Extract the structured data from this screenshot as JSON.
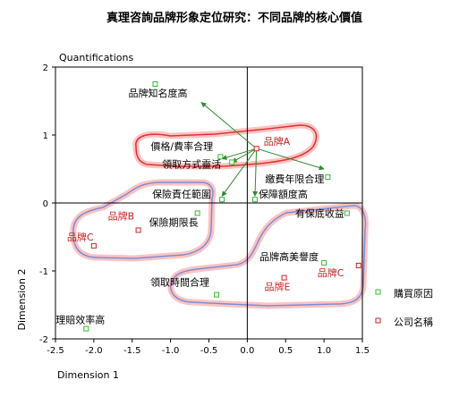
{
  "chart_data": {
    "type": "scatter",
    "title": "真理咨詢品牌形象定位研究：不同品牌的核心價值",
    "plot_caption": "Quantifications",
    "xlabel": "Dimension 1",
    "ylabel": "Dimension 2",
    "xlim": [
      -2.5,
      1.5
    ],
    "ylim": [
      -2,
      2
    ],
    "xticks": [
      "-2.5",
      "-2.0",
      "-1.5",
      "-1.0",
      "-0.5",
      "0.0",
      "0.5",
      "1.0",
      "1.5"
    ],
    "yticks": [
      "2",
      "1",
      "0",
      "-1",
      "-2"
    ],
    "legend_placement": "right",
    "series": [
      {
        "name": "購買原因",
        "color": "#33bb33",
        "points": [
          {
            "label": "品牌知名度高",
            "x": -1.2,
            "y": 1.75
          },
          {
            "label": "價格/費率合理",
            "x": -0.35,
            "y": 0.68
          },
          {
            "label": "領取方式靈活",
            "x": -0.2,
            "y": 0.6
          },
          {
            "label": "繳費年限合理",
            "x": 1.05,
            "y": 0.38
          },
          {
            "label": "保險責任範圍",
            "x": -0.33,
            "y": 0.05
          },
          {
            "label": "保障額度高",
            "x": 0.1,
            "y": 0.05
          },
          {
            "label": "保險期限長",
            "x": -0.65,
            "y": -0.15
          },
          {
            "label": "有保底收益",
            "x": 1.3,
            "y": -0.15
          },
          {
            "label": "品牌高美譽度",
            "x": 1.0,
            "y": -0.88
          },
          {
            "label": "領取時間合理",
            "x": -0.4,
            "y": -1.35
          },
          {
            "label": "理賠效率高",
            "x": -2.1,
            "y": -1.85
          }
        ]
      },
      {
        "name": "公司名稱",
        "color": "#cc2222",
        "points": [
          {
            "label": "品牌A",
            "x": 0.12,
            "y": 0.8
          },
          {
            "label": "品牌B",
            "x": -1.42,
            "y": -0.4
          },
          {
            "label": "品牌C",
            "x": -2.0,
            "y": -0.63
          },
          {
            "label": "品牌C",
            "x": 1.45,
            "y": -0.92
          },
          {
            "label": "品牌E",
            "x": 0.48,
            "y": -1.1
          }
        ]
      }
    ],
    "arrows": {
      "origin": [
        0.12,
        0.8
      ],
      "targets": [
        [
          -0.6,
          1.48
        ],
        [
          -0.33,
          0.65
        ],
        [
          -0.2,
          0.6
        ],
        [
          1.0,
          0.5
        ],
        [
          -0.33,
          0.1
        ],
        [
          0.1,
          0.1
        ]
      ]
    },
    "highlight_colors": {
      "glow": "#ff9a9a",
      "edge": "#dd3333",
      "inner": "#7a8fd6"
    }
  }
}
